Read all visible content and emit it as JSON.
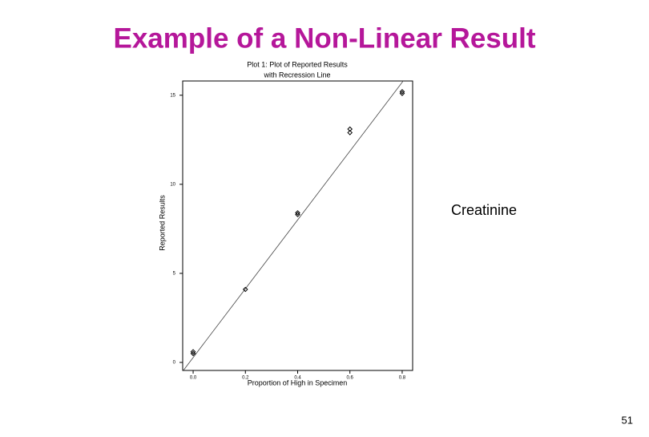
{
  "slide": {
    "title": "Example of a Non-Linear Result",
    "note": "Creatinine",
    "page_number": "51"
  },
  "chart_data": {
    "type": "scatter",
    "title": [
      "Plot 1:  Plot of Reported Results",
      "with Recression Line"
    ],
    "x_label": "Proportion of High in Specimen",
    "y_label": "Reported Results",
    "series": [
      {
        "color": "#000000",
        "x": [
          0,
          0,
          0.2,
          0.4,
          0.4,
          0.6,
          0.6,
          0.8,
          0.8
        ],
        "values": [
          0.5,
          0.6,
          4.1,
          8.3,
          8.4,
          12.9,
          13.1,
          15.1,
          15.2
        ]
      }
    ],
    "regression": {
      "color": "#444444",
      "x": [
        -0.04,
        0.84
      ],
      "values": [
        -0.5,
        16.5
      ]
    },
    "xlim": [
      -0.04,
      0.84
    ],
    "ylim": [
      -0.45,
      15.8
    ],
    "xticks": [
      {
        "value": 0,
        "label": "0.0"
      },
      0.2,
      0.4,
      0.6,
      0.8
    ],
    "yticks": [
      0,
      5,
      10,
      15
    ]
  }
}
